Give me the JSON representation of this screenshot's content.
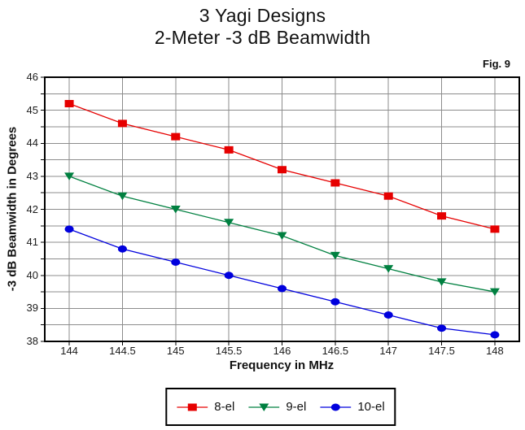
{
  "figure_label": "Fig. 9",
  "chart_data": {
    "type": "line",
    "title": "3 Yagi Designs",
    "subtitle": "2-Meter -3 dB Beamwidth",
    "xlabel": "Frequency in MHz",
    "ylabel": "-3 dB Beamwidth in Degrees",
    "x": [
      144,
      144.5,
      145,
      145.5,
      146,
      146.5,
      147,
      147.5,
      148
    ],
    "x_tick_labels": [
      "144",
      "144.5",
      "145",
      "145.5",
      "146",
      "146.5",
      "147",
      "147.5",
      "148"
    ],
    "y_tick_labels": [
      "38",
      "39",
      "40",
      "41",
      "42",
      "43",
      "44",
      "45",
      "46"
    ],
    "xlim": [
      143.77,
      148.23
    ],
    "ylim": [
      38,
      46
    ],
    "grid": true,
    "grid_step": 0.5,
    "legend_position": "bottom",
    "colors": {
      "grid": "#8c8c8c",
      "axis": "#000000",
      "background": "#ffffff",
      "text": "#111111"
    },
    "series": [
      {
        "name": "8-el",
        "marker": "square",
        "color": "#e60000",
        "values": [
          45.2,
          44.6,
          44.2,
          43.8,
          43.2,
          42.8,
          42.4,
          41.8,
          41.4
        ]
      },
      {
        "name": "9-el",
        "marker": "triangle-down",
        "color": "#008040",
        "values": [
          43.0,
          42.4,
          42.0,
          41.6,
          41.2,
          40.6,
          40.2,
          39.8,
          39.5
        ]
      },
      {
        "name": "10-el",
        "marker": "circle",
        "color": "#0000dd",
        "values": [
          41.4,
          40.8,
          40.4,
          40.0,
          39.6,
          39.2,
          38.8,
          38.4,
          38.2
        ]
      }
    ]
  }
}
